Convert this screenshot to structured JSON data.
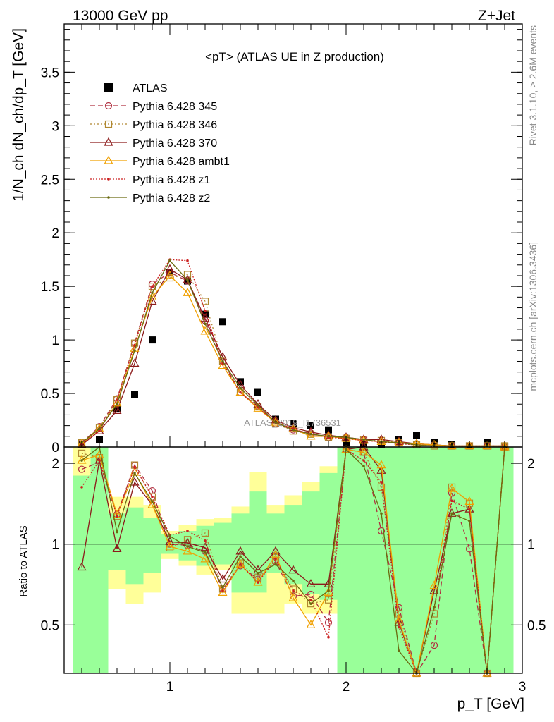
{
  "header": {
    "left": "13000 GeV pp",
    "right": "Z+Jet"
  },
  "side_labels": {
    "rivet": "Rivet 3.1.10, ≥ 2.6M events",
    "mcplots": "mcplots.cern.ch [arXiv:1306.3436]"
  },
  "watermark": "ATLAS_2019_I1736531",
  "chart_data": [
    {
      "type": "line",
      "panel": "main",
      "title": "<pT> (ATLAS UE in Z production)",
      "ylabel": "1/N_ch dN_ch/dp_T [GeV]",
      "xlim": [
        0.4,
        3.0
      ],
      "ylim": [
        0,
        3.95
      ],
      "yticks": [
        0,
        0.5,
        1,
        1.5,
        2,
        2.5,
        3,
        3.5
      ],
      "ytick_labels": [
        "0",
        "0.5",
        "1",
        "1.5",
        "2",
        "2.5",
        "3",
        "3.5"
      ],
      "legend_position": "top-left",
      "x": [
        0.5,
        0.6,
        0.7,
        0.8,
        0.9,
        1.0,
        1.1,
        1.2,
        1.3,
        1.4,
        1.5,
        1.6,
        1.7,
        1.8,
        1.9,
        2.0,
        2.1,
        2.2,
        2.3,
        2.4,
        2.5,
        2.6,
        2.7,
        2.8,
        2.9
      ],
      "series": [
        {
          "name": "ATLAS",
          "color": "#000000",
          "style": "data",
          "values": [
            0.02,
            0.07,
            0.36,
            0.49,
            1.0,
            1.63,
            1.55,
            1.24,
            1.17,
            0.61,
            0.51,
            0.26,
            0.22,
            0.2,
            0.16,
            0.04,
            0.03,
            0.02,
            0.07,
            0.11,
            0.04,
            0.02,
            0.01,
            0.04,
            0.002
          ]
        },
        {
          "name": "Pythia 6.428 345",
          "color": "#b03040",
          "dash": "7,4",
          "marker": "circle",
          "values": [
            0.04,
            0.19,
            0.45,
            0.97,
            1.52,
            1.63,
            1.55,
            1.18,
            0.8,
            0.51,
            0.38,
            0.22,
            0.16,
            0.13,
            0.09,
            0.09,
            0.07,
            0.05,
            0.04,
            0.03,
            0.02,
            0.01,
            0.01,
            0.01,
            0.01
          ]
        },
        {
          "name": "Pythia 6.428 346",
          "color": "#b08830",
          "dash": "2,3",
          "marker": "square",
          "values": [
            0.04,
            0.18,
            0.44,
            0.97,
            1.5,
            1.58,
            1.61,
            1.36,
            0.8,
            0.51,
            0.38,
            0.22,
            0.15,
            0.12,
            0.09,
            0.08,
            0.07,
            0.06,
            0.04,
            0.02,
            0.01,
            0.01,
            0.01,
            0.01,
            0.01
          ]
        },
        {
          "name": "Pythia 6.428 370",
          "color": "#8c1a1a",
          "dash": "",
          "marker": "triangle",
          "values": [
            0.02,
            0.15,
            0.34,
            0.78,
            1.36,
            1.66,
            1.56,
            1.2,
            0.84,
            0.58,
            0.4,
            0.25,
            0.18,
            0.14,
            0.11,
            0.09,
            0.07,
            0.07,
            0.05,
            0.03,
            0.02,
            0.01,
            0.01,
            0.01,
            0.01
          ]
        },
        {
          "name": "Pythia 6.428 ambt1",
          "color": "#f0a000",
          "dash": "",
          "marker": "triangle",
          "values": [
            0.03,
            0.17,
            0.41,
            0.92,
            1.4,
            1.6,
            1.44,
            1.08,
            0.76,
            0.51,
            0.36,
            0.23,
            0.17,
            0.1,
            0.1,
            0.08,
            0.06,
            0.05,
            0.04,
            0.03,
            0.02,
            0.01,
            0.01,
            0.01,
            0.01
          ]
        },
        {
          "name": "Pythia 6.428 z1",
          "color": "#cc2020",
          "dash": "2,2",
          "marker": "dot",
          "values": [
            0.03,
            0.15,
            0.44,
            0.95,
            1.5,
            1.75,
            1.74,
            1.27,
            0.78,
            0.51,
            0.37,
            0.23,
            0.17,
            0.12,
            0.09,
            0.08,
            0.06,
            0.05,
            0.03,
            0.02,
            0.01,
            0.01,
            0.01,
            0.01,
            0.01
          ]
        },
        {
          "name": "Pythia 6.428 z2",
          "color": "#6b6b10",
          "dash": "",
          "marker": "dot",
          "values": [
            0.04,
            0.17,
            0.4,
            0.9,
            1.44,
            1.74,
            1.56,
            1.15,
            0.8,
            0.55,
            0.39,
            0.23,
            0.16,
            0.12,
            0.1,
            0.09,
            0.07,
            0.05,
            0.04,
            0.02,
            0.01,
            0.01,
            0.01,
            0.01,
            0.01
          ]
        }
      ]
    },
    {
      "type": "line",
      "panel": "ratio",
      "ylabel": "Ratio to ATLAS",
      "xlabel": "p_T [GeV]",
      "xlim": [
        0.4,
        3.0
      ],
      "ylim": [
        0.33,
        2.3
      ],
      "xticks": [
        1,
        2,
        3
      ],
      "xtick_labels": [
        "1",
        "2",
        "3"
      ],
      "yticks": [
        0.5,
        1,
        2
      ],
      "ytick_labels": [
        "0.5",
        "1",
        "2"
      ],
      "ylog": true,
      "reference_line": 1,
      "x": [
        0.5,
        0.6,
        0.7,
        0.8,
        0.9,
        1.0,
        1.1,
        1.2,
        1.3,
        1.4,
        1.5,
        1.6,
        1.7,
        1.8,
        1.9,
        2.0,
        2.1,
        2.2,
        2.3,
        2.4,
        2.5,
        2.6,
        2.7,
        2.8,
        2.9
      ],
      "band_inner": [
        [
          0.33,
          1.8
        ],
        [
          0.33,
          2.3
        ],
        [
          0.8,
          1.3
        ],
        [
          0.71,
          1.37
        ],
        [
          0.78,
          1.25
        ],
        [
          0.92,
          1.09
        ],
        [
          0.87,
          1.12
        ],
        [
          0.83,
          1.17
        ],
        [
          0.84,
          1.2
        ],
        [
          0.66,
          1.3
        ],
        [
          0.66,
          1.57
        ],
        [
          0.78,
          1.3
        ],
        [
          0.71,
          1.4
        ],
        [
          0.65,
          1.57
        ],
        [
          0.62,
          1.84
        ],
        [
          0.33,
          2.3
        ],
        [
          0.33,
          2.3
        ],
        [
          0.33,
          2.3
        ],
        [
          0.33,
          2.3
        ],
        [
          0.33,
          2.3
        ],
        [
          0.33,
          2.3
        ],
        [
          0.33,
          2.3
        ],
        [
          0.33,
          2.3
        ],
        [
          0.33,
          2.3
        ],
        [
          0.33,
          2.3
        ]
      ],
      "band_outer": [
        [
          0.33,
          2.3
        ],
        [
          0.33,
          2.3
        ],
        [
          0.68,
          1.5
        ],
        [
          0.6,
          1.5
        ],
        [
          0.66,
          1.4
        ],
        [
          0.88,
          1.12
        ],
        [
          0.83,
          1.18
        ],
        [
          0.77,
          1.24
        ],
        [
          0.8,
          1.25
        ],
        [
          0.55,
          1.38
        ],
        [
          0.55,
          1.85
        ],
        [
          0.55,
          1.4
        ],
        [
          0.6,
          1.52
        ],
        [
          0.55,
          1.7
        ],
        [
          0.55,
          1.95
        ],
        [
          0.33,
          2.3
        ],
        [
          0.33,
          2.3
        ],
        [
          0.33,
          2.3
        ],
        [
          0.33,
          2.3
        ],
        [
          0.33,
          2.3
        ],
        [
          0.33,
          2.3
        ],
        [
          0.33,
          2.3
        ],
        [
          0.33,
          2.3
        ],
        [
          0.33,
          2.3
        ],
        [
          0.33,
          2.3
        ]
      ],
      "series": [
        {
          "name": "Pythia 6.428 345",
          "color": "#b03040",
          "dash": "7,4",
          "marker": "circle",
          "values": [
            1.9,
            2.02,
            1.29,
            1.97,
            1.58,
            1.0,
            0.99,
            0.94,
            0.68,
            0.83,
            0.74,
            0.86,
            0.64,
            0.65,
            0.51,
            2.25,
            2.2,
            1.12,
            0.58,
            0.33,
            0.42,
            1.55,
            0.96,
            0.33,
            2.3
          ]
        },
        {
          "name": "Pythia 6.428 346",
          "color": "#b08830",
          "dash": "2,3",
          "marker": "square",
          "values": [
            2.18,
            2.1,
            1.27,
            1.97,
            1.5,
            0.97,
            1.04,
            1.1,
            0.68,
            0.85,
            0.75,
            0.87,
            0.68,
            0.6,
            0.62,
            2.25,
            2.2,
            1.63,
            0.55,
            0.33,
            0.55,
            1.63,
            1.42,
            0.33,
            2.3
          ]
        },
        {
          "name": "Pythia 6.428 370",
          "color": "#8c1a1a",
          "dash": "",
          "marker": "triangle",
          "values": [
            0.82,
            2.05,
            0.96,
            1.7,
            1.4,
            1.02,
            1.01,
            0.97,
            0.74,
            0.94,
            0.8,
            0.94,
            0.8,
            0.71,
            0.71,
            2.25,
            2.3,
            1.88,
            0.51,
            0.33,
            0.67,
            1.3,
            1.35,
            0.33,
            2.3
          ]
        },
        {
          "name": "Pythia 6.428 ambt1",
          "color": "#f0a000",
          "dash": "",
          "marker": "triangle",
          "values": [
            2.05,
            2.15,
            1.29,
            1.85,
            1.4,
            0.98,
            0.94,
            0.88,
            0.66,
            0.84,
            0.72,
            0.91,
            0.63,
            0.5,
            0.66,
            2.25,
            2.2,
            1.97,
            0.52,
            0.33,
            0.7,
            1.61,
            1.44,
            0.33,
            2.3
          ]
        },
        {
          "name": "Pythia 6.428 z1",
          "color": "#cc2020",
          "dash": "2,2",
          "marker": "dot",
          "values": [
            1.63,
            2.05,
            1.27,
            1.94,
            1.5,
            1.08,
            1.12,
            1.03,
            0.67,
            0.84,
            0.72,
            0.88,
            0.67,
            0.62,
            0.45,
            2.25,
            2.05,
            1.7,
            0.49,
            0.33,
            0.58,
            1.45,
            1.35,
            0.33,
            2.3
          ]
        },
        {
          "name": "Pythia 6.428 z2",
          "color": "#6b6b10",
          "dash": "",
          "marker": "dot",
          "values": [
            2.05,
            2.3,
            1.11,
            1.84,
            1.44,
            1.07,
            0.98,
            0.93,
            0.69,
            0.9,
            0.78,
            0.84,
            0.73,
            0.6,
            0.67,
            2.25,
            1.95,
            1.3,
            0.4,
            0.33,
            0.58,
            1.3,
            1.22,
            0.33,
            2.3
          ]
        }
      ]
    }
  ]
}
